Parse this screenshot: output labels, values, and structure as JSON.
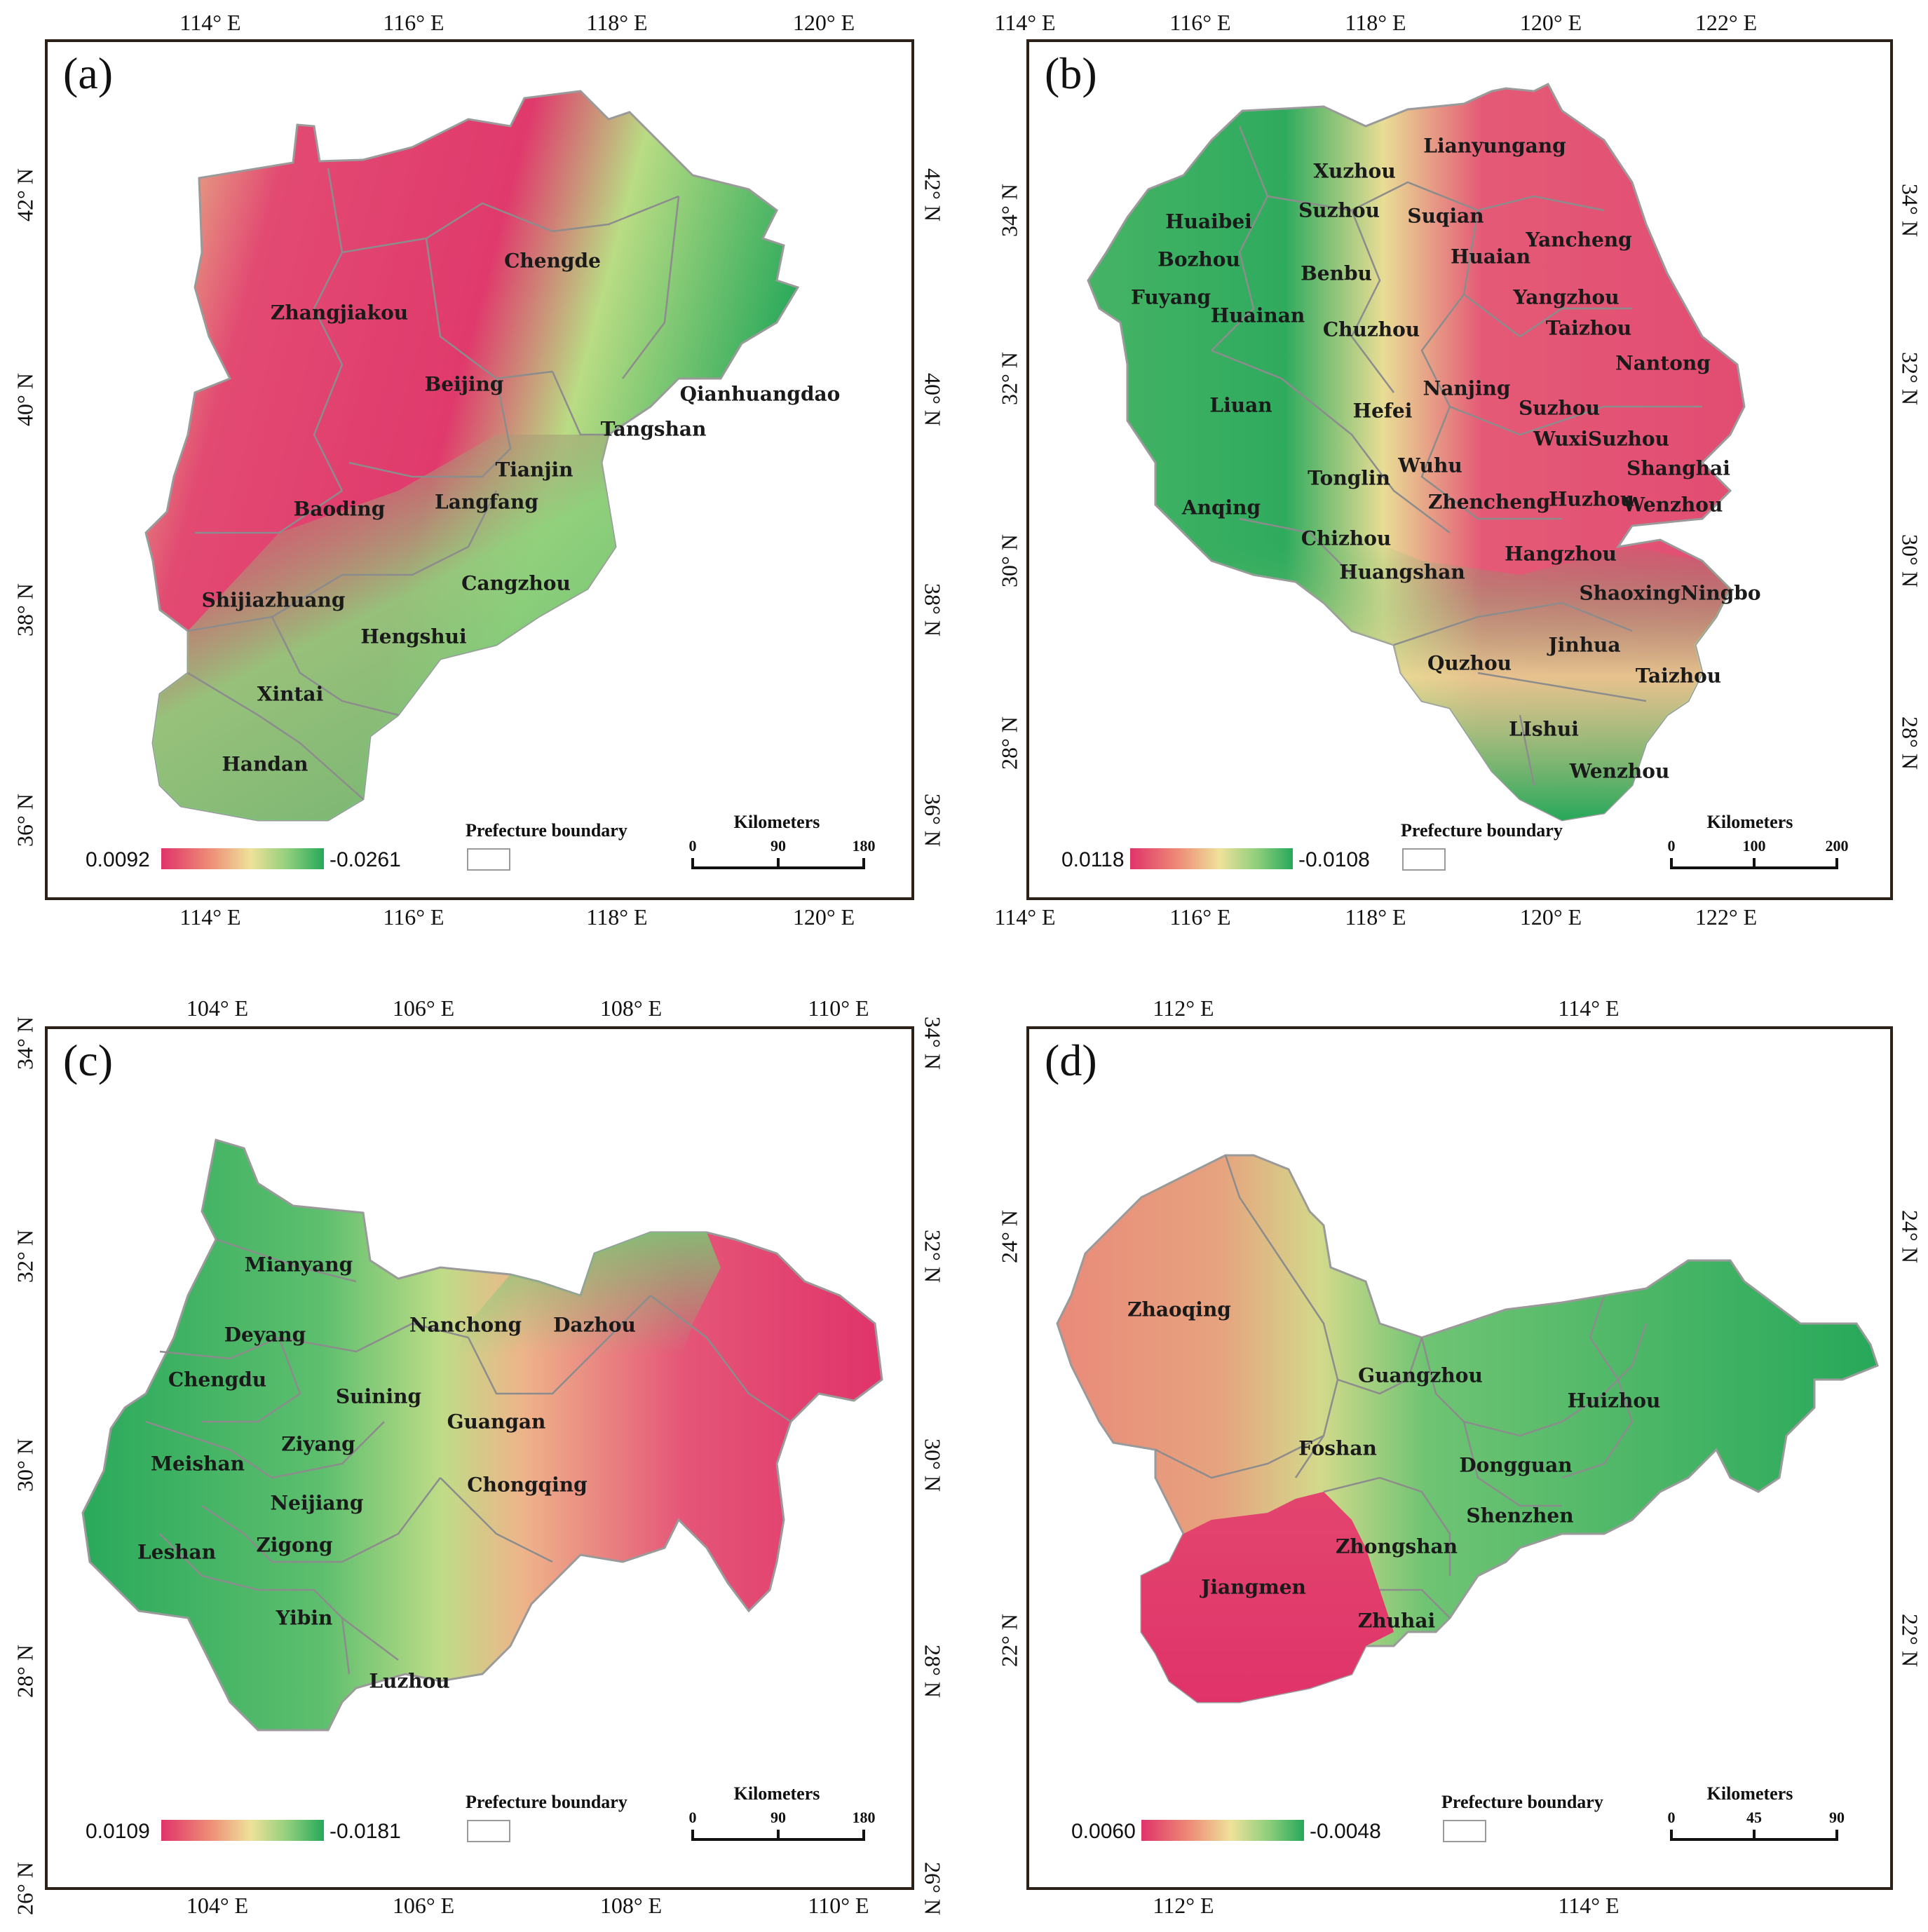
{
  "colors": {
    "high": "#e0336a",
    "mid": "#eee29a",
    "low": "#27a85a",
    "boundary": "#8c8c8c"
  },
  "panels": [
    {
      "id": "a",
      "label": "(a)",
      "top_ticks": [
        "114° E",
        "116° E",
        "118° E",
        "120° E"
      ],
      "bottom_ticks": [
        "114° E",
        "116° E",
        "118° E",
        "120° E"
      ],
      "left_ticks": [
        "42° N",
        "40° N",
        "38° N",
        "36° N"
      ],
      "right_ticks": [
        "42° N",
        "40° N",
        "38° N",
        "36° N"
      ],
      "legend": {
        "max": "0.0092",
        "min": "-0.0261"
      },
      "boundary_label": "Prefecture boundary",
      "scale": {
        "title": "Kilometers",
        "ticks": [
          "0",
          "90",
          "180"
        ]
      },
      "cities": [
        "Chengde",
        "Zhangjiakou",
        "Beijing",
        "Qianhuangdao",
        "Tangshan",
        "Tianjin",
        "Baoding",
        "Langfang",
        "Cangzhou",
        "Shijiazhuang",
        "Hengshui",
        "Xintai",
        "Handan"
      ]
    },
    {
      "id": "b",
      "label": "(b)",
      "top_ticks": [
        "114° E",
        "116° E",
        "118° E",
        "120° E",
        "122° E"
      ],
      "bottom_ticks": [
        "114° E",
        "116° E",
        "118° E",
        "120° E",
        "122° E"
      ],
      "left_ticks": [
        "34° N",
        "32° N",
        "30° N",
        "28° N"
      ],
      "right_ticks": [
        "34° N",
        "32° N",
        "30° N",
        "28° N"
      ],
      "legend": {
        "max": "0.0118",
        "min": "-0.0108"
      },
      "boundary_label": "Prefecture boundary",
      "scale": {
        "title": "Kilometers",
        "ticks": [
          "0",
          "100",
          "200"
        ]
      },
      "cities": [
        "Lianyungang",
        "Xuzhou",
        "Huaibei",
        "Suzhou",
        "Suqian",
        "Yancheng",
        "Bozhou",
        "Benbu",
        "Huaian",
        "Fuyang",
        "Huainan",
        "Chuzhou",
        "Yangzhou",
        "Taizhou",
        "Nantong",
        "Nanjing",
        "Liuan",
        "Hefei",
        "Suzhou",
        "WuxiSuzhou",
        "Shanghai",
        "Tonglin",
        "Wuhu",
        "Anqing",
        "Zhencheng",
        "Huzhou",
        "Wenzhou",
        "Chizhou",
        "Hangzhou",
        "Huangshan",
        "ShaoxingNingbo",
        "Jinhua",
        "Quzhou",
        "Taizhou",
        "LIshui",
        "Wenzhou"
      ]
    },
    {
      "id": "c",
      "label": "(c)",
      "top_ticks": [
        "104° E",
        "106° E",
        "108° E",
        "110° E"
      ],
      "bottom_ticks": [
        "104° E",
        "106° E",
        "108° E",
        "110° E"
      ],
      "left_ticks": [
        "34° N",
        "32° N",
        "30° N",
        "28° N",
        "26° N"
      ],
      "right_ticks": [
        "34° N",
        "32° N",
        "30° N",
        "28° N",
        "26° N"
      ],
      "legend": {
        "max": "0.0109",
        "min": "-0.0181"
      },
      "boundary_label": "Prefecture boundary",
      "scale": {
        "title": "Kilometers",
        "ticks": [
          "0",
          "90",
          "180"
        ]
      },
      "cities": [
        "Mianyang",
        "Deyang",
        "Nanchong",
        "Dazhou",
        "Chengdu",
        "Suining",
        "Guangan",
        "Ziyang",
        "Meishan",
        "Chongqing",
        "Neijiang",
        "Leshan",
        "Zigong",
        "Yibin",
        "Luzhou"
      ]
    },
    {
      "id": "d",
      "label": "(d)",
      "top_ticks": [
        "112° E",
        "114° E"
      ],
      "bottom_ticks": [
        "112° E",
        "114° E"
      ],
      "left_ticks": [
        "24° N",
        "22° N"
      ],
      "right_ticks": [
        "24° N",
        "22° N"
      ],
      "legend": {
        "max": "0.0060",
        "min": "-0.0048"
      },
      "boundary_label": "Prefecture boundary",
      "scale": {
        "title": "Kilometers",
        "ticks": [
          "0",
          "45",
          "90"
        ]
      },
      "cities": [
        "Zhaoqing",
        "Guangzhou",
        "Huizhou",
        "Foshan",
        "Dongguan",
        "Shenzhen",
        "Zhongshan",
        "Jiangmen",
        "Zhuhai"
      ]
    }
  ]
}
